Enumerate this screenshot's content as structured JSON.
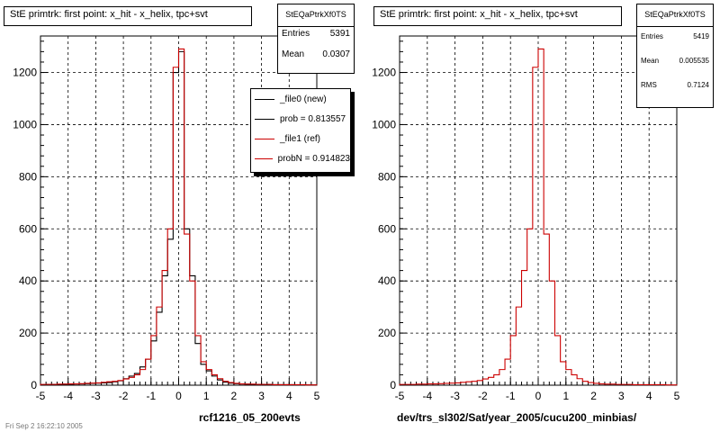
{
  "colors": {
    "new": "#000000",
    "ref": "#cc0000"
  },
  "footer_text": "Fri Sep 2 16:22:10 2005",
  "chart_data": [
    {
      "type": "histogram",
      "title": "StE primtrk: first point: x_hit - x_helix, tpc+svt",
      "xlabel": "rcf1216_05_200evts",
      "ylabel": "",
      "xlim": [
        -5,
        5
      ],
      "ylim": [
        0,
        1340
      ],
      "xticks": [
        "-5",
        "-4",
        "-3",
        "-2",
        "-1",
        "0",
        "1",
        "2",
        "3",
        "4",
        "5"
      ],
      "yticks": [
        "0",
        "200",
        "400",
        "600",
        "800",
        "1000",
        "1200"
      ],
      "grid": true,
      "bin_edges": [
        -5.0,
        -4.8,
        -4.6,
        -4.4,
        -4.2,
        -4.0,
        -3.8,
        -3.6,
        -3.4,
        -3.2,
        -3.0,
        -2.8,
        -2.6,
        -2.4,
        -2.2,
        -2.0,
        -1.8,
        -1.6,
        -1.4,
        -1.2,
        -1.0,
        -0.8,
        -0.6,
        -0.4,
        -0.2,
        0.0,
        0.2,
        0.4,
        0.6,
        0.8,
        1.0,
        1.2,
        1.4,
        1.6,
        1.8,
        2.0,
        2.2,
        2.4,
        2.6,
        2.8,
        3.0,
        3.2,
        3.4,
        3.6,
        3.8,
        4.0,
        4.2,
        4.4,
        4.6,
        4.8,
        5.0
      ],
      "stats": {
        "name": "StEQaPtrkXf0TS",
        "rows": [
          {
            "label": "Entries",
            "value": "5391"
          },
          {
            "label": "Mean",
            "value": "0.0307"
          }
        ]
      },
      "legend": {
        "placement": "top-right",
        "entries": [
          {
            "label": "_file0 (new)",
            "color": "#000000"
          },
          {
            "label": "prob = 0.813557",
            "color": "#000000"
          },
          {
            "label": "_file1 (ref)",
            "color": "#cc0000"
          },
          {
            "label": "probN = 0.914823",
            "color": "#cc0000"
          }
        ]
      },
      "series": [
        {
          "name": "_file0 (new)",
          "color": "#000000",
          "values": [
            2,
            3,
            3,
            2,
            4,
            4,
            5,
            5,
            6,
            7,
            8,
            9,
            10,
            13,
            17,
            25,
            35,
            45,
            70,
            100,
            170,
            280,
            420,
            560,
            1200,
            1280,
            600,
            420,
            160,
            80,
            55,
            35,
            20,
            12,
            8,
            6,
            5,
            4,
            3,
            3,
            3,
            3,
            2,
            2,
            2,
            2,
            1,
            1,
            1,
            1
          ]
        },
        {
          "name": "_file1 (ref)",
          "color": "#cc0000",
          "values": [
            3,
            3,
            3,
            4,
            4,
            5,
            5,
            6,
            7,
            8,
            9,
            11,
            13,
            15,
            18,
            24,
            30,
            40,
            60,
            100,
            190,
            300,
            440,
            600,
            1220,
            1290,
            580,
            400,
            190,
            90,
            60,
            40,
            25,
            15,
            10,
            7,
            5,
            4,
            4,
            3,
            3,
            3,
            2,
            2,
            2,
            2,
            2,
            2,
            1,
            1
          ]
        }
      ]
    },
    {
      "type": "histogram",
      "title": "StE primtrk: first point: x_hit - x_helix, tpc+svt",
      "xlabel": "dev/trs_sl302/Sat/year_2005/cucu200_minbias/",
      "ylabel": "",
      "xlim": [
        -5,
        5
      ],
      "ylim": [
        0,
        1340
      ],
      "xticks": [
        "-5",
        "-4",
        "-3",
        "-2",
        "-1",
        "0",
        "1",
        "2",
        "3",
        "4",
        "5"
      ],
      "yticks": [
        "0",
        "200",
        "400",
        "600",
        "800",
        "1000",
        "1200"
      ],
      "grid": true,
      "bin_edges": [
        -5.0,
        -4.8,
        -4.6,
        -4.4,
        -4.2,
        -4.0,
        -3.8,
        -3.6,
        -3.4,
        -3.2,
        -3.0,
        -2.8,
        -2.6,
        -2.4,
        -2.2,
        -2.0,
        -1.8,
        -1.6,
        -1.4,
        -1.2,
        -1.0,
        -0.8,
        -0.6,
        -0.4,
        -0.2,
        0.0,
        0.2,
        0.4,
        0.6,
        0.8,
        1.0,
        1.2,
        1.4,
        1.6,
        1.8,
        2.0,
        2.2,
        2.4,
        2.6,
        2.8,
        3.0,
        3.2,
        3.4,
        3.6,
        3.8,
        4.0,
        4.2,
        4.4,
        4.6,
        4.8,
        5.0
      ],
      "stats": {
        "name": "StEQaPtrkXf0TS",
        "rows": [
          {
            "label": "Entries",
            "value": "5419"
          },
          {
            "label": "Mean",
            "value": "0.005535"
          },
          {
            "label": "RMS",
            "value": "0.7124"
          }
        ]
      },
      "series": [
        {
          "name": "",
          "color": "#cc0000",
          "values": [
            3,
            3,
            3,
            4,
            4,
            5,
            5,
            6,
            7,
            8,
            9,
            11,
            13,
            15,
            18,
            24,
            30,
            40,
            60,
            100,
            190,
            300,
            440,
            600,
            1220,
            1290,
            580,
            400,
            190,
            90,
            60,
            40,
            25,
            15,
            10,
            7,
            5,
            4,
            4,
            3,
            3,
            3,
            2,
            2,
            2,
            2,
            2,
            2,
            1,
            1
          ]
        }
      ]
    }
  ]
}
